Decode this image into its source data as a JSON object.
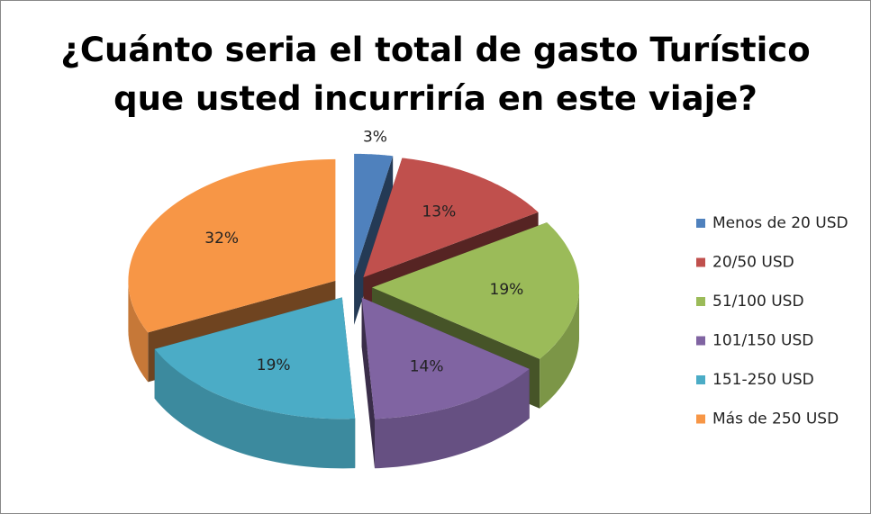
{
  "chart_data": {
    "type": "pie",
    "title": "¿Cuánto seria el total de gasto Turístico que usted incurriría en este viaje?",
    "categories": [
      "Menos de 20 USD",
      "20/50 USD",
      "51/100 USD",
      "101/150 USD",
      "151-250 USD",
      "Más de 250 USD"
    ],
    "values": [
      3,
      13,
      19,
      14,
      19,
      32
    ],
    "value_labels": [
      "3%",
      "13%",
      "19%",
      "14%",
      "19%",
      "32%"
    ],
    "colors": [
      "#4f81bd",
      "#c0504d",
      "#9bbb59",
      "#8064a2",
      "#4bacc6",
      "#f79646"
    ],
    "legend": "right"
  }
}
